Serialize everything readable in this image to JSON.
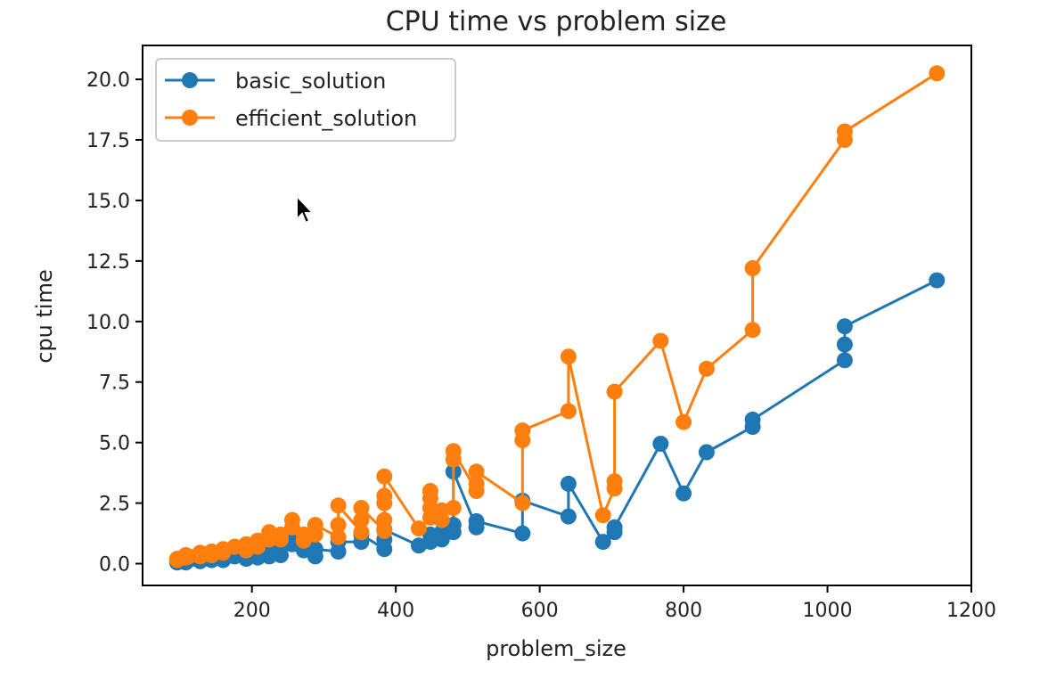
{
  "chart_data": {
    "type": "line",
    "title": "CPU time vs problem size",
    "xlabel": "problem_size",
    "ylabel": "cpu time",
    "xlim": [
      48,
      1200
    ],
    "ylim": [
      -0.9,
      21.4
    ],
    "xticks": [
      200,
      400,
      600,
      800,
      1000,
      1200
    ],
    "yticks": [
      0.0,
      2.5,
      5.0,
      7.5,
      10.0,
      12.5,
      15.0,
      17.5,
      20.0
    ],
    "xtick_labels": [
      "200",
      "400",
      "600",
      "800",
      "1000",
      "1200"
    ],
    "ytick_labels": [
      "0.0",
      "2.5",
      "5.0",
      "7.5",
      "10.0",
      "12.5",
      "15.0",
      "17.5",
      "20.0"
    ],
    "grid": false,
    "legend_position": "upper-left",
    "marker": "circle",
    "series": [
      {
        "name": "basic_solution",
        "color": "#1f77b4",
        "points": [
          [
            96,
            0.05
          ],
          [
            96,
            0.1
          ],
          [
            108,
            0.05
          ],
          [
            108,
            0.1
          ],
          [
            112,
            0.15
          ],
          [
            128,
            0.1
          ],
          [
            128,
            0.2
          ],
          [
            144,
            0.15
          ],
          [
            144,
            0.2
          ],
          [
            160,
            0.15
          ],
          [
            160,
            0.3
          ],
          [
            176,
            0.3
          ],
          [
            192,
            0.2
          ],
          [
            192,
            0.35
          ],
          [
            208,
            0.25
          ],
          [
            208,
            0.45
          ],
          [
            224,
            0.3
          ],
          [
            224,
            0.55
          ],
          [
            240,
            0.35
          ],
          [
            240,
            0.7
          ],
          [
            256,
            0.8
          ],
          [
            256,
            1.0
          ],
          [
            272,
            0.55
          ],
          [
            272,
            0.7
          ],
          [
            288,
            0.3
          ],
          [
            288,
            0.6
          ],
          [
            320,
            0.5
          ],
          [
            320,
            0.9
          ],
          [
            352,
            0.9
          ],
          [
            352,
            1.2
          ],
          [
            384,
            0.6
          ],
          [
            384,
            1.0
          ],
          [
            384,
            1.4
          ],
          [
            432,
            0.75
          ],
          [
            448,
            0.9
          ],
          [
            448,
            1.2
          ],
          [
            464,
            1.0
          ],
          [
            464,
            1.3
          ],
          [
            480,
            1.3
          ],
          [
            480,
            1.6
          ],
          [
            480,
            3.8
          ],
          [
            512,
            1.5
          ],
          [
            512,
            1.75
          ],
          [
            576,
            1.25
          ],
          [
            576,
            2.6
          ],
          [
            640,
            1.95
          ],
          [
            640,
            3.3
          ],
          [
            688,
            0.9
          ],
          [
            704,
            1.3
          ],
          [
            704,
            1.5
          ],
          [
            768,
            4.95
          ],
          [
            800,
            2.9
          ],
          [
            832,
            4.6
          ],
          [
            896,
            5.65
          ],
          [
            896,
            5.95
          ],
          [
            1024,
            8.4
          ],
          [
            1024,
            9.05
          ],
          [
            1024,
            9.8
          ],
          [
            1152,
            11.7
          ]
        ]
      },
      {
        "name": "efficient_solution",
        "color": "#ff7f0e",
        "points": [
          [
            96,
            0.15
          ],
          [
            96,
            0.2
          ],
          [
            108,
            0.25
          ],
          [
            108,
            0.35
          ],
          [
            112,
            0.3
          ],
          [
            128,
            0.3
          ],
          [
            128,
            0.45
          ],
          [
            144,
            0.35
          ],
          [
            144,
            0.5
          ],
          [
            160,
            0.45
          ],
          [
            160,
            0.6
          ],
          [
            176,
            0.7
          ],
          [
            192,
            0.55
          ],
          [
            192,
            0.8
          ],
          [
            208,
            0.7
          ],
          [
            208,
            0.95
          ],
          [
            224,
            1.0
          ],
          [
            224,
            1.3
          ],
          [
            240,
            1.0
          ],
          [
            240,
            1.2
          ],
          [
            256,
            1.5
          ],
          [
            256,
            1.8
          ],
          [
            272,
            0.95
          ],
          [
            272,
            1.2
          ],
          [
            288,
            1.2
          ],
          [
            288,
            1.6
          ],
          [
            320,
            1.1
          ],
          [
            320,
            1.6
          ],
          [
            320,
            2.4
          ],
          [
            352,
            1.3
          ],
          [
            352,
            1.8
          ],
          [
            352,
            2.3
          ],
          [
            384,
            1.35
          ],
          [
            384,
            1.8
          ],
          [
            384,
            2.5
          ],
          [
            384,
            2.8
          ],
          [
            384,
            3.6
          ],
          [
            432,
            1.45
          ],
          [
            448,
            1.9
          ],
          [
            448,
            2.3
          ],
          [
            448,
            2.7
          ],
          [
            448,
            3.0
          ],
          [
            464,
            1.8
          ],
          [
            464,
            2.2
          ],
          [
            480,
            2.3
          ],
          [
            480,
            4.3
          ],
          [
            480,
            4.65
          ],
          [
            512,
            3.0
          ],
          [
            512,
            3.3
          ],
          [
            512,
            3.8
          ],
          [
            576,
            2.5
          ],
          [
            576,
            5.1
          ],
          [
            576,
            5.5
          ],
          [
            640,
            6.3
          ],
          [
            640,
            8.55
          ],
          [
            688,
            2.0
          ],
          [
            704,
            3.1
          ],
          [
            704,
            3.4
          ],
          [
            704,
            7.1
          ],
          [
            768,
            9.2
          ],
          [
            800,
            5.85
          ],
          [
            832,
            8.05
          ],
          [
            896,
            9.65
          ],
          [
            896,
            12.2
          ],
          [
            1024,
            17.5
          ],
          [
            1024,
            17.85
          ],
          [
            1152,
            20.25
          ]
        ]
      }
    ]
  }
}
